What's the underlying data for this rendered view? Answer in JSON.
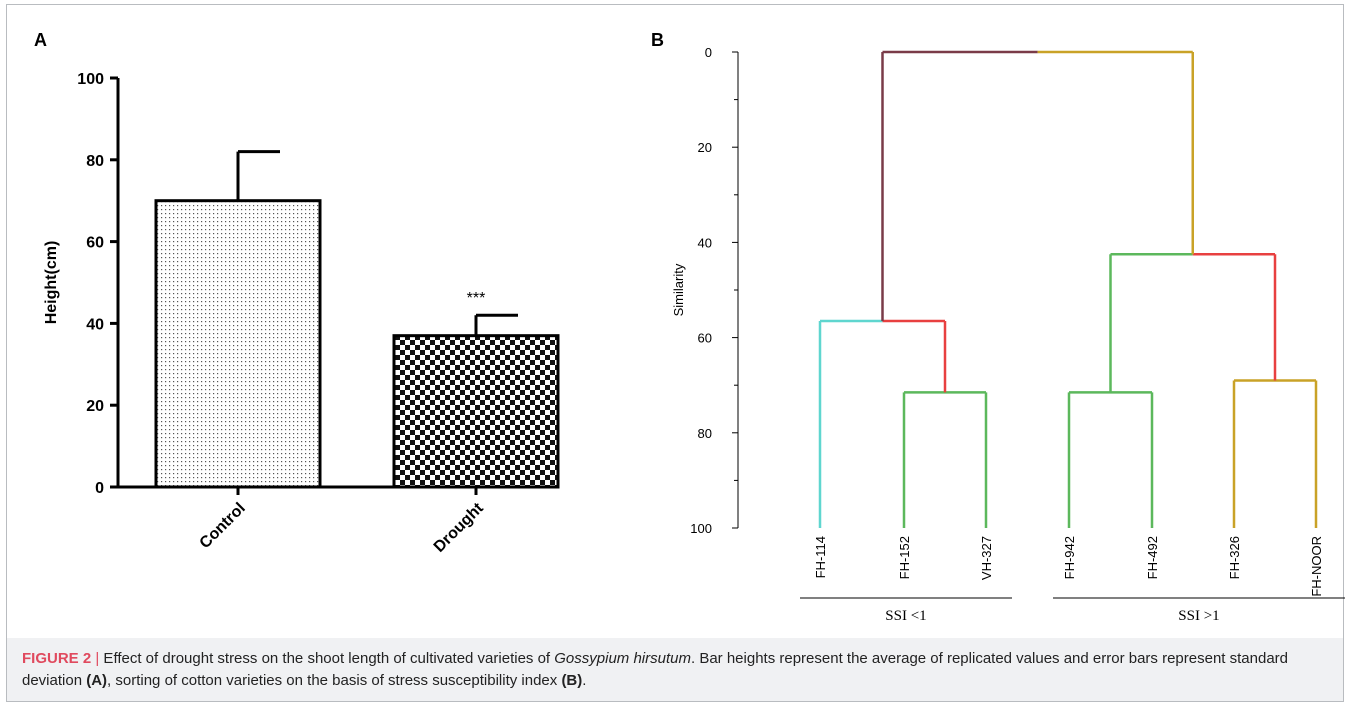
{
  "panel_a_label": "A",
  "panel_b_label": "B",
  "caption": {
    "figure_label": "FIGURE 2",
    "separator": "|",
    "text_1": " Effect of drought stress on the shoot length of cultivated varieties of ",
    "species": "Gossypium hirsutum",
    "text_2": ". Bar heights represent the average of replicated values and error bars represent standard deviation ",
    "ref_a": "(A)",
    "text_3": ", sorting of cotton varieties on the basis of stress susceptibility index ",
    "ref_b": "(B)",
    "text_4": "."
  },
  "chart_data": [
    {
      "type": "bar",
      "categories": [
        "Control",
        "Drought"
      ],
      "values": [
        70,
        37
      ],
      "errors": [
        12,
        5
      ],
      "annotations": [
        "",
        "***"
      ],
      "ylabel": "Height(cm)",
      "ylim": [
        0,
        100
      ],
      "yticks": [
        0,
        20,
        40,
        60,
        80,
        100
      ],
      "patterns": [
        "fine-dots",
        "checkerboard"
      ],
      "grid": false
    },
    {
      "type": "dendrogram",
      "ylabel": "Similarity",
      "ylim": [
        0,
        100
      ],
      "yticks": [
        0,
        20,
        40,
        60,
        80,
        100
      ],
      "leaves": [
        "FH-114",
        "FH-152",
        "VH-327",
        "FH-942",
        "FH-492",
        "FH-326",
        "FH-NOOR"
      ],
      "merges": [
        {
          "a": 1,
          "b": 2,
          "height": 71.5,
          "color": "#5cb85c"
        },
        {
          "a": 3,
          "b": 4,
          "height": 71.5,
          "color": "#5cb85c"
        },
        {
          "a": 5,
          "b": 6,
          "height": 69,
          "color": "#c9a227"
        },
        {
          "a": 0,
          "b": "m0",
          "height": 56.5,
          "color_left": "#5fd6cf",
          "color_right": "#e84040"
        },
        {
          "a": "m1",
          "b": "m2",
          "height": 42.5,
          "color_left": "#5cb85c",
          "color_right": "#e84040"
        },
        {
          "a": "m3",
          "b": "m4",
          "height": 0,
          "color_left": "#7a3b48",
          "color_right": "#c9a227"
        }
      ],
      "groups": [
        {
          "label": "SSI <1",
          "leaves": [
            0,
            2
          ]
        },
        {
          "label": "SSI >1",
          "leaves": [
            3,
            6
          ]
        }
      ],
      "grid": false
    }
  ]
}
